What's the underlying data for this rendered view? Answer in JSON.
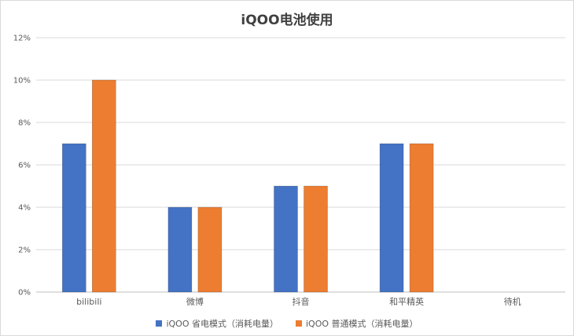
{
  "chart_data": {
    "type": "bar",
    "title": "iQOO电池使用",
    "categories": [
      "bilibili",
      "微博",
      "抖音",
      "和平精英",
      "待机"
    ],
    "series": [
      {
        "name": "iQOO 省电模式（消耗电量）",
        "color": "#4472c4",
        "values": [
          7,
          4,
          5,
          7,
          0
        ]
      },
      {
        "name": "iQOO 普通模式（消耗电量）",
        "color": "#ed7d31",
        "values": [
          10,
          4,
          5,
          7,
          0
        ]
      }
    ],
    "ylim": [
      0,
      12
    ],
    "yticks": [
      0,
      2,
      4,
      6,
      8,
      10,
      12
    ],
    "ytick_format": "%",
    "grid": true,
    "legend_position": "bottom"
  }
}
